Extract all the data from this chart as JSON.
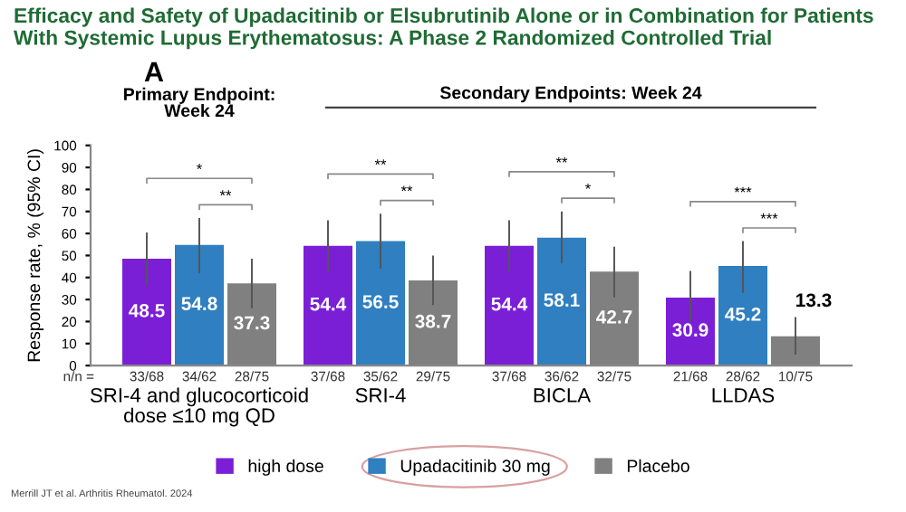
{
  "chart_data": {
    "type": "bar",
    "title": "Efficacy and Safety of Upadacitinib or Elsubrutinib Alone or in Combination for Patients With Systemic Lupus Erythematosus: A Phase 2 Randomized Controlled Trial",
    "ylabel": "Response rate, % (95% CI)",
    "categories": [
      "SRI-4 and glucocorticoid\ndose ≤10 mg QD",
      "SRI-4",
      "BICLA",
      "LLDAS"
    ],
    "series": [
      {
        "name": "high dose",
        "color": "#7b1fd6",
        "values": [
          48.5,
          54.4,
          54.4,
          30.9
        ],
        "errors": [
          [
            36.5,
            60.5
          ],
          [
            42.5,
            66
          ],
          [
            42.7,
            66
          ],
          [
            20,
            43
          ]
        ]
      },
      {
        "name": "Upadacitinib 30 mg",
        "color": "#2f7fc1",
        "values": [
          54.8,
          56.5,
          58.1,
          45.2
        ],
        "errors": [
          [
            42,
            67
          ],
          [
            44,
            69
          ],
          [
            46.5,
            70
          ],
          [
            33,
            56.5
          ]
        ]
      },
      {
        "name": "Placebo",
        "color": "#808080",
        "values": [
          37.3,
          38.7,
          42.7,
          13.3
        ],
        "errors": [
          [
            26,
            48.5
          ],
          [
            27.5,
            50
          ],
          [
            31,
            54
          ],
          [
            5,
            22
          ]
        ]
      }
    ],
    "ylim": [
      0,
      100
    ],
    "yticks": [
      0,
      10,
      20,
      30,
      40,
      50,
      60,
      70,
      80,
      90,
      100
    ],
    "data_labels": true,
    "grid": false,
    "legend": "bottom",
    "annotations": [
      "A",
      "Primary Endpoint:\nWeek 24",
      "Secondary Endpoints: Week 24",
      "n/n =",
      "33/68",
      "34/62",
      "28/75",
      "37/68",
      "35/62",
      "29/75",
      "37/68",
      "36/62",
      "32/75",
      "21/68",
      "28/62",
      "10/75",
      "*",
      "**",
      "**",
      "**",
      "**",
      "*",
      "***",
      "***",
      "Merrill JT et al. Arthritis Rheumatol. 2024"
    ]
  }
}
